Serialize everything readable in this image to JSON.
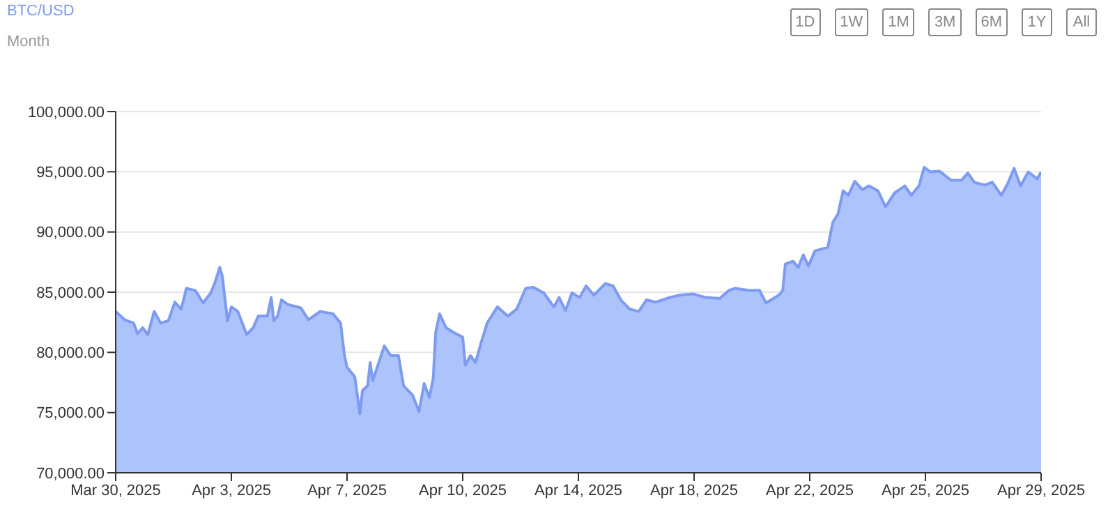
{
  "chart_data": {
    "type": "area",
    "title": "BTC/USD",
    "subtitle": "Month",
    "annotations": [
      "1D",
      "1W",
      "1M",
      "3M",
      "6M",
      "1Y",
      "All"
    ],
    "color": "#7d9bf0",
    "grid": "y",
    "xlim": [
      "2025-03-30T12:00",
      "2025-04-29T12:00"
    ],
    "xticks": [
      {
        "value": "2025-03-30T12:00",
        "label": "Mar 30, 2025"
      },
      {
        "value": "2025-04-03T06:00",
        "label": "Apr 3, 2025"
      },
      {
        "value": "2025-04-07T00:00",
        "label": "Apr 7, 2025"
      },
      {
        "value": "2025-04-10T18:00",
        "label": "Apr 10, 2025"
      },
      {
        "value": "2025-04-14T12:00",
        "label": "Apr 14, 2025"
      },
      {
        "value": "2025-04-18T06:00",
        "label": "Apr 18, 2025"
      },
      {
        "value": "2025-04-22T00:00",
        "label": "Apr 22, 2025"
      },
      {
        "value": "2025-04-25T18:00",
        "label": "Apr 25, 2025"
      },
      {
        "value": "2025-04-29T12:00",
        "label": "Apr 29, 2025"
      }
    ],
    "ylim": [
      70000,
      100000
    ],
    "yticks": [
      {
        "value": 70000,
        "label": "70,000.00"
      },
      {
        "value": 75000,
        "label": "75,000.00"
      },
      {
        "value": 80000,
        "label": "80,000.00"
      },
      {
        "value": 85000,
        "label": "85,000.00"
      },
      {
        "value": 90000,
        "label": "90,000.00"
      },
      {
        "value": 95000,
        "label": "95,000.00"
      },
      {
        "value": 100000,
        "label": "100,000.00"
      }
    ],
    "x": [
      "2025-03-30T12:00",
      "2025-03-30T19:00",
      "2025-03-31T02:00",
      "2025-03-31T05:00",
      "2025-03-31T09:00",
      "2025-03-31T13:00",
      "2025-03-31T18:00",
      "2025-03-31T23:00",
      "2025-04-01T05:00",
      "2025-04-01T10:00",
      "2025-04-01T15:00",
      "2025-04-01T19:00",
      "2025-04-02T02:00",
      "2025-04-02T08:00",
      "2025-04-02T14:00",
      "2025-04-02T17:00",
      "2025-04-02T21:00",
      "2025-04-02T23:00",
      "2025-04-03T03:00",
      "2025-04-03T06:00",
      "2025-04-03T11:00",
      "2025-04-03T18:00",
      "2025-04-03T23:00",
      "2025-04-04T03:00",
      "2025-04-04T10:00",
      "2025-04-04T13:00",
      "2025-04-04T15:00",
      "2025-04-04T18:00",
      "2025-04-04T21:00",
      "2025-04-05T02:00",
      "2025-04-05T12:00",
      "2025-04-05T18:00",
      "2025-04-06T03:00",
      "2025-04-06T13:00",
      "2025-04-06T19:00",
      "2025-04-06T22:00",
      "2025-04-07T00:00",
      "2025-04-07T03:00",
      "2025-04-07T06:00",
      "2025-04-07T10:00",
      "2025-04-07T12:00",
      "2025-04-07T16:00",
      "2025-04-07T18:00",
      "2025-04-07T20:00",
      "2025-04-08T05:00",
      "2025-04-08T10:00",
      "2025-04-08T16:00",
      "2025-04-08T20:00",
      "2025-04-09T03:00",
      "2025-04-09T08:00",
      "2025-04-09T12:00",
      "2025-04-09T16:00",
      "2025-04-09T19:00",
      "2025-04-09T21:00",
      "2025-04-10T00:00",
      "2025-04-10T05:00",
      "2025-04-10T11:00",
      "2025-04-10T18:00",
      "2025-04-10T20:00",
      "2025-04-11T00:00",
      "2025-04-11T04:00",
      "2025-04-11T08:00",
      "2025-04-11T13:00",
      "2025-04-11T21:00",
      "2025-04-12T05:00",
      "2025-04-12T12:00",
      "2025-04-12T19:00",
      "2025-04-13T01:00",
      "2025-04-13T09:00",
      "2025-04-13T17:00",
      "2025-04-13T21:00",
      "2025-04-14T02:00",
      "2025-04-14T07:00",
      "2025-04-14T13:00",
      "2025-04-14T18:00",
      "2025-04-15T00:00",
      "2025-04-15T09:00",
      "2025-04-15T15:00",
      "2025-04-15T21:00",
      "2025-04-16T04:00",
      "2025-04-16T11:00",
      "2025-04-16T17:00",
      "2025-04-17T00:00",
      "2025-04-17T11:00",
      "2025-04-17T19:00",
      "2025-04-18T05:00",
      "2025-04-18T15:00",
      "2025-04-19T02:00",
      "2025-04-19T09:00",
      "2025-04-19T14:00",
      "2025-04-20T01:00",
      "2025-04-20T09:00",
      "2025-04-20T14:00",
      "2025-04-21T00:00",
      "2025-04-21T03:00",
      "2025-04-21T05:00",
      "2025-04-21T11:00",
      "2025-04-21T15:00",
      "2025-04-21T19:00",
      "2025-04-21T23:00",
      "2025-04-22T04:00",
      "2025-04-22T14:00",
      "2025-04-22T18:00",
      "2025-04-22T22:00",
      "2025-04-23T02:00",
      "2025-04-23T06:00",
      "2025-04-23T11:00",
      "2025-04-23T17:00",
      "2025-04-23T22:00",
      "2025-04-24T05:00",
      "2025-04-24T11:00",
      "2025-04-24T18:00",
      "2025-04-25T02:00",
      "2025-04-25T07:00",
      "2025-04-25T13:00",
      "2025-04-25T17:00",
      "2025-04-25T22:00",
      "2025-04-26T05:00",
      "2025-04-26T14:00",
      "2025-04-26T22:00",
      "2025-04-27T03:00",
      "2025-04-27T08:00",
      "2025-04-27T16:00",
      "2025-04-27T22:00",
      "2025-04-28T05:00",
      "2025-04-28T10:00",
      "2025-04-28T15:00",
      "2025-04-28T20:00",
      "2025-04-29T02:00",
      "2025-04-29T09:00",
      "2025-04-29T12:00"
    ],
    "values": [
      83400,
      82710,
      82430,
      81550,
      82050,
      81470,
      83400,
      82430,
      82630,
      84170,
      83590,
      85320,
      85140,
      84100,
      84940,
      85720,
      87060,
      86300,
      82630,
      83780,
      83400,
      81470,
      82050,
      83010,
      83010,
      84560,
      82630,
      83010,
      84360,
      83980,
      83700,
      82710,
      83400,
      83200,
      82430,
      79730,
      78770,
      78370,
      77990,
      74900,
      76830,
      77220,
      79150,
      77640,
      80540,
      79730,
      79730,
      77220,
      76450,
      75100,
      77410,
      76250,
      77800,
      81660,
      83200,
      82050,
      81660,
      81270,
      78950,
      79730,
      79150,
      80690,
      82430,
      83780,
      83010,
      83590,
      85320,
      85410,
      84940,
      83780,
      84560,
      83470,
      84940,
      84560,
      85520,
      84750,
      85720,
      85520,
      84360,
      83590,
      83400,
      84360,
      84170,
      84560,
      84750,
      84860,
      84560,
      84480,
      85140,
      85320,
      85140,
      85140,
      84100,
      84750,
      85140,
      87340,
      87570,
      87060,
      88100,
      87180,
      88420,
      88730,
      90810,
      91510,
      93430,
      93050,
      94210,
      93510,
      93830,
      93430,
      92090,
      93250,
      93830,
      93050,
      93830,
      95370,
      94990,
      95050,
      94290,
      94290,
      94900,
      94130,
      93900,
      94130,
      93050,
      94010,
      95290,
      93830,
      94990,
      94410,
      94990
    ]
  }
}
